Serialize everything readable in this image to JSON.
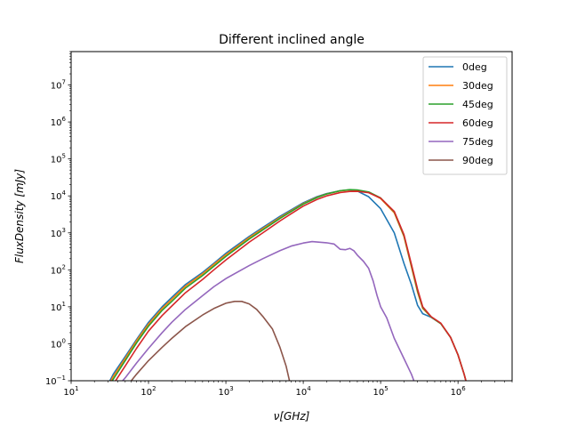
{
  "chart_data": {
    "type": "line",
    "title": "Different inclined angle",
    "xlabel": "ν[GHz]",
    "ylabel": "FluxDensity [mJy]",
    "xscale": "log",
    "yscale": "log",
    "xlim": [
      10,
      5000000
    ],
    "ylim": [
      0.1,
      80000000
    ],
    "xticks": [
      {
        "value": 10,
        "label": "10",
        "exp": "1"
      },
      {
        "value": 100,
        "label": "10",
        "exp": "2"
      },
      {
        "value": 1000,
        "label": "10",
        "exp": "3"
      },
      {
        "value": 10000,
        "label": "10",
        "exp": "4"
      },
      {
        "value": 100000,
        "label": "10",
        "exp": "5"
      },
      {
        "value": 1000000,
        "label": "10",
        "exp": "6"
      }
    ],
    "yticks": [
      {
        "value": 0.1,
        "label": "10",
        "exp": "−1"
      },
      {
        "value": 1,
        "label": "10",
        "exp": "0"
      },
      {
        "value": 10,
        "label": "10",
        "exp": "1"
      },
      {
        "value": 100,
        "label": "10",
        "exp": "2"
      },
      {
        "value": 1000,
        "label": "10",
        "exp": "3"
      },
      {
        "value": 10000,
        "label": "10",
        "exp": "4"
      },
      {
        "value": 100000,
        "label": "10",
        "exp": "5"
      },
      {
        "value": 1000000,
        "label": "10",
        "exp": "6"
      },
      {
        "value": 10000000,
        "label": "10",
        "exp": "7"
      }
    ],
    "grid": false,
    "legend_position": "top-right",
    "series": [
      {
        "name": "0deg",
        "color": "#1f77b4",
        "points": [
          [
            30,
            0.08
          ],
          [
            35,
            0.15
          ],
          [
            50,
            0.45
          ],
          [
            70,
            1.3
          ],
          [
            100,
            3.8
          ],
          [
            150,
            10
          ],
          [
            200,
            18
          ],
          [
            300,
            40
          ],
          [
            500,
            85
          ],
          [
            700,
            150
          ],
          [
            1000,
            280
          ],
          [
            2000,
            800
          ],
          [
            3000,
            1400
          ],
          [
            5000,
            2800
          ],
          [
            7000,
            4200
          ],
          [
            10000,
            6500
          ],
          [
            15000,
            9500
          ],
          [
            20000,
            11500
          ],
          [
            30000,
            13800
          ],
          [
            40000,
            14500
          ],
          [
            50000,
            13500
          ],
          [
            70000,
            9500
          ],
          [
            100000,
            4500
          ],
          [
            150000,
            1000
          ],
          [
            200000,
            150
          ],
          [
            250000,
            40
          ],
          [
            300000,
            11
          ],
          [
            350000,
            6.5
          ],
          [
            450000,
            5.2
          ],
          [
            600000,
            3.5
          ],
          [
            800000,
            1.5
          ],
          [
            1000000,
            0.5
          ],
          [
            1200000,
            0.15
          ],
          [
            1300000,
            0.08
          ]
        ]
      },
      {
        "name": "30deg",
        "color": "#ff7f0e",
        "points": [
          [
            30,
            0.07
          ],
          [
            35,
            0.13
          ],
          [
            50,
            0.4
          ],
          [
            70,
            1.2
          ],
          [
            100,
            3.4
          ],
          [
            150,
            9
          ],
          [
            200,
            16
          ],
          [
            300,
            36
          ],
          [
            500,
            78
          ],
          [
            700,
            140
          ],
          [
            1000,
            255
          ],
          [
            2000,
            740
          ],
          [
            3000,
            1300
          ],
          [
            5000,
            2600
          ],
          [
            7000,
            3950
          ],
          [
            10000,
            6200
          ],
          [
            15000,
            9200
          ],
          [
            20000,
            11300
          ],
          [
            30000,
            13700
          ],
          [
            40000,
            14600
          ],
          [
            50000,
            14300
          ],
          [
            70000,
            12500
          ],
          [
            100000,
            8500
          ],
          [
            150000,
            3500
          ],
          [
            200000,
            800
          ],
          [
            250000,
            120
          ],
          [
            300000,
            25
          ],
          [
            350000,
            9
          ],
          [
            450000,
            5.3
          ],
          [
            600000,
            3.5
          ],
          [
            800000,
            1.5
          ],
          [
            1000000,
            0.5
          ],
          [
            1200000,
            0.15
          ],
          [
            1300000,
            0.08
          ]
        ]
      },
      {
        "name": "45deg",
        "color": "#2ca02c",
        "points": [
          [
            30,
            0.06
          ],
          [
            35,
            0.11
          ],
          [
            50,
            0.35
          ],
          [
            70,
            1.05
          ],
          [
            100,
            3.0
          ],
          [
            150,
            8
          ],
          [
            200,
            14
          ],
          [
            300,
            32
          ],
          [
            500,
            70
          ],
          [
            700,
            125
          ],
          [
            1000,
            230
          ],
          [
            2000,
            680
          ],
          [
            3000,
            1200
          ],
          [
            5000,
            2450
          ],
          [
            7000,
            3800
          ],
          [
            10000,
            6000
          ],
          [
            15000,
            9000
          ],
          [
            20000,
            11200
          ],
          [
            30000,
            13800
          ],
          [
            40000,
            14800
          ],
          [
            50000,
            14500
          ],
          [
            70000,
            12800
          ],
          [
            100000,
            8800
          ],
          [
            150000,
            3700
          ],
          [
            200000,
            850
          ],
          [
            250000,
            130
          ],
          [
            300000,
            27
          ],
          [
            350000,
            9.5
          ],
          [
            450000,
            5.3
          ],
          [
            600000,
            3.5
          ],
          [
            800000,
            1.5
          ],
          [
            1000000,
            0.5
          ],
          [
            1200000,
            0.15
          ],
          [
            1300000,
            0.08
          ]
        ]
      },
      {
        "name": "60deg",
        "color": "#d62728",
        "points": [
          [
            30,
            0.05
          ],
          [
            35,
            0.08
          ],
          [
            50,
            0.25
          ],
          [
            70,
            0.75
          ],
          [
            100,
            2.2
          ],
          [
            150,
            5.8
          ],
          [
            200,
            10.5
          ],
          [
            300,
            24
          ],
          [
            500,
            55
          ],
          [
            700,
            100
          ],
          [
            1000,
            185
          ],
          [
            2000,
            560
          ],
          [
            3000,
            1000
          ],
          [
            5000,
            2100
          ],
          [
            7000,
            3300
          ],
          [
            10000,
            5300
          ],
          [
            15000,
            8000
          ],
          [
            20000,
            10000
          ],
          [
            30000,
            12300
          ],
          [
            40000,
            13200
          ],
          [
            50000,
            13300
          ],
          [
            70000,
            12200
          ],
          [
            100000,
            8700
          ],
          [
            150000,
            3800
          ],
          [
            200000,
            900
          ],
          [
            250000,
            140
          ],
          [
            300000,
            30
          ],
          [
            350000,
            10
          ],
          [
            450000,
            5.4
          ],
          [
            600000,
            3.6
          ],
          [
            800000,
            1.5
          ],
          [
            1000000,
            0.5
          ],
          [
            1200000,
            0.15
          ],
          [
            1300000,
            0.08
          ]
        ]
      },
      {
        "name": "75deg",
        "color": "#9467bd",
        "points": [
          [
            40,
            0.07
          ],
          [
            50,
            0.12
          ],
          [
            70,
            0.3
          ],
          [
            100,
            0.75
          ],
          [
            150,
            2.0
          ],
          [
            200,
            3.8
          ],
          [
            300,
            8.5
          ],
          [
            500,
            20
          ],
          [
            700,
            35
          ],
          [
            1000,
            58
          ],
          [
            2000,
            130
          ],
          [
            3000,
            200
          ],
          [
            5000,
            330
          ],
          [
            7000,
            440
          ],
          [
            10000,
            530
          ],
          [
            13000,
            580
          ],
          [
            20000,
            540
          ],
          [
            25000,
            500
          ],
          [
            30000,
            360
          ],
          [
            35000,
            350
          ],
          [
            40000,
            380
          ],
          [
            45000,
            330
          ],
          [
            50000,
            250
          ],
          [
            60000,
            170
          ],
          [
            70000,
            110
          ],
          [
            80000,
            50
          ],
          [
            90000,
            20
          ],
          [
            100000,
            10
          ],
          [
            120000,
            5
          ],
          [
            150000,
            1.4
          ],
          [
            200000,
            0.4
          ],
          [
            250000,
            0.15
          ],
          [
            280000,
            0.08
          ]
        ]
      },
      {
        "name": "90deg",
        "color": "#8c564b",
        "points": [
          [
            55,
            0.08
          ],
          [
            70,
            0.15
          ],
          [
            100,
            0.35
          ],
          [
            150,
            0.8
          ],
          [
            200,
            1.4
          ],
          [
            300,
            2.9
          ],
          [
            500,
            6
          ],
          [
            700,
            9
          ],
          [
            1000,
            12.5
          ],
          [
            1300,
            14
          ],
          [
            1600,
            14
          ],
          [
            2000,
            12
          ],
          [
            2500,
            8.5
          ],
          [
            3000,
            5.5
          ],
          [
            4000,
            2.5
          ],
          [
            5000,
            0.8
          ],
          [
            6000,
            0.25
          ],
          [
            6800,
            0.08
          ]
        ]
      }
    ]
  }
}
